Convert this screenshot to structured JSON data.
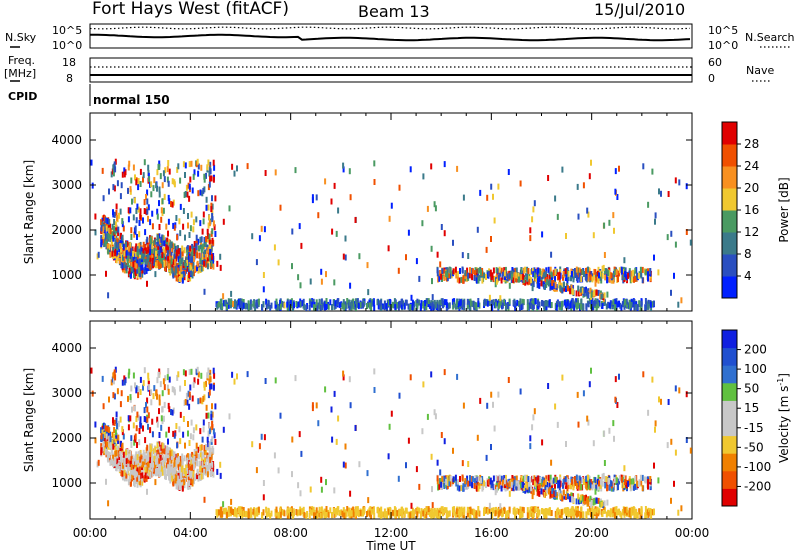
{
  "header": {
    "station": "Fort Hays West (fitACF)",
    "beam": "Beam 13",
    "date": "15/Jul/2010"
  },
  "noise_panel": {
    "left_label": "N.Sky",
    "right_label": "N.Search",
    "left_ticks": [
      "10^5",
      "10^0"
    ],
    "right_ticks": [
      "10^5",
      "10^0"
    ]
  },
  "freq_panel": {
    "left_label_1": "Freq.",
    "left_label_2": "[MHz]",
    "right_label": "Nave",
    "left_ticks": [
      "18",
      "8"
    ],
    "right_ticks": [
      "60",
      "0"
    ]
  },
  "cpid_panel": {
    "label": "CPID",
    "value": "normal 150"
  },
  "colors": {
    "power_scale": [
      "#0020ff",
      "#2a4fc0",
      "#3b7a8a",
      "#4a9a62",
      "#f0c830",
      "#f89020",
      "#f05000",
      "#e00000"
    ],
    "velocity_scale": [
      "#e00000",
      "#f05000",
      "#f08000",
      "#f0c830",
      "#c8c8c8",
      "#c8c8c8",
      "#60c040",
      "#3070d0",
      "#2050d0",
      "#1020e0"
    ],
    "velocity_scatter": "#c8c8c8"
  },
  "chart_data": [
    {
      "type": "heatmap",
      "panel": "power",
      "ylabel": "Slant Range [km]",
      "yticks": [
        "1000",
        "2000",
        "3000",
        "4000"
      ],
      "ylim": [
        200,
        4600
      ],
      "xticks": [
        "00:00",
        "04:00",
        "08:00",
        "12:00",
        "16:00",
        "20:00",
        "00:00"
      ],
      "xlim_hours": [
        0,
        24
      ],
      "colorbar": {
        "label": "Power [dB]",
        "ticks": [
          "4",
          "8",
          "12",
          "16",
          "20",
          "24",
          "28"
        ],
        "range": [
          0,
          32
        ]
      },
      "echo_regions": [
        {
          "t_start": 0.5,
          "t_end": 4.8,
          "r_start": 1000,
          "r_end": 1800,
          "value_range": [
            12,
            28
          ]
        },
        {
          "t_start": 0.8,
          "t_end": 4.5,
          "r_start": 1800,
          "r_end": 3400,
          "value_range": [
            4,
            20
          ]
        },
        {
          "t_start": 5.0,
          "t_end": 22.5,
          "r_start": 200,
          "r_end": 400,
          "value_range": [
            4,
            16
          ]
        },
        {
          "t_start": 13.5,
          "t_end": 22.5,
          "r_start": 500,
          "r_end": 1100,
          "value_range": [
            4,
            28
          ]
        }
      ]
    },
    {
      "type": "heatmap",
      "panel": "velocity",
      "ylabel": "Slant Range [km]",
      "yticks": [
        "1000",
        "2000",
        "3000",
        "4000"
      ],
      "ylim": [
        200,
        4600
      ],
      "xticks": [
        "00:00",
        "04:00",
        "08:00",
        "12:00",
        "16:00",
        "20:00",
        "00:00"
      ],
      "xlim_hours": [
        0,
        24
      ],
      "xlabel": "Time UT",
      "colorbar": {
        "label_main": "Velocity [m s",
        "label_sup": "-1",
        "label_end": "]",
        "ticks": [
          "-200",
          "-100",
          "-50",
          "-15",
          "15",
          "50",
          "100",
          "200"
        ]
      }
    }
  ]
}
